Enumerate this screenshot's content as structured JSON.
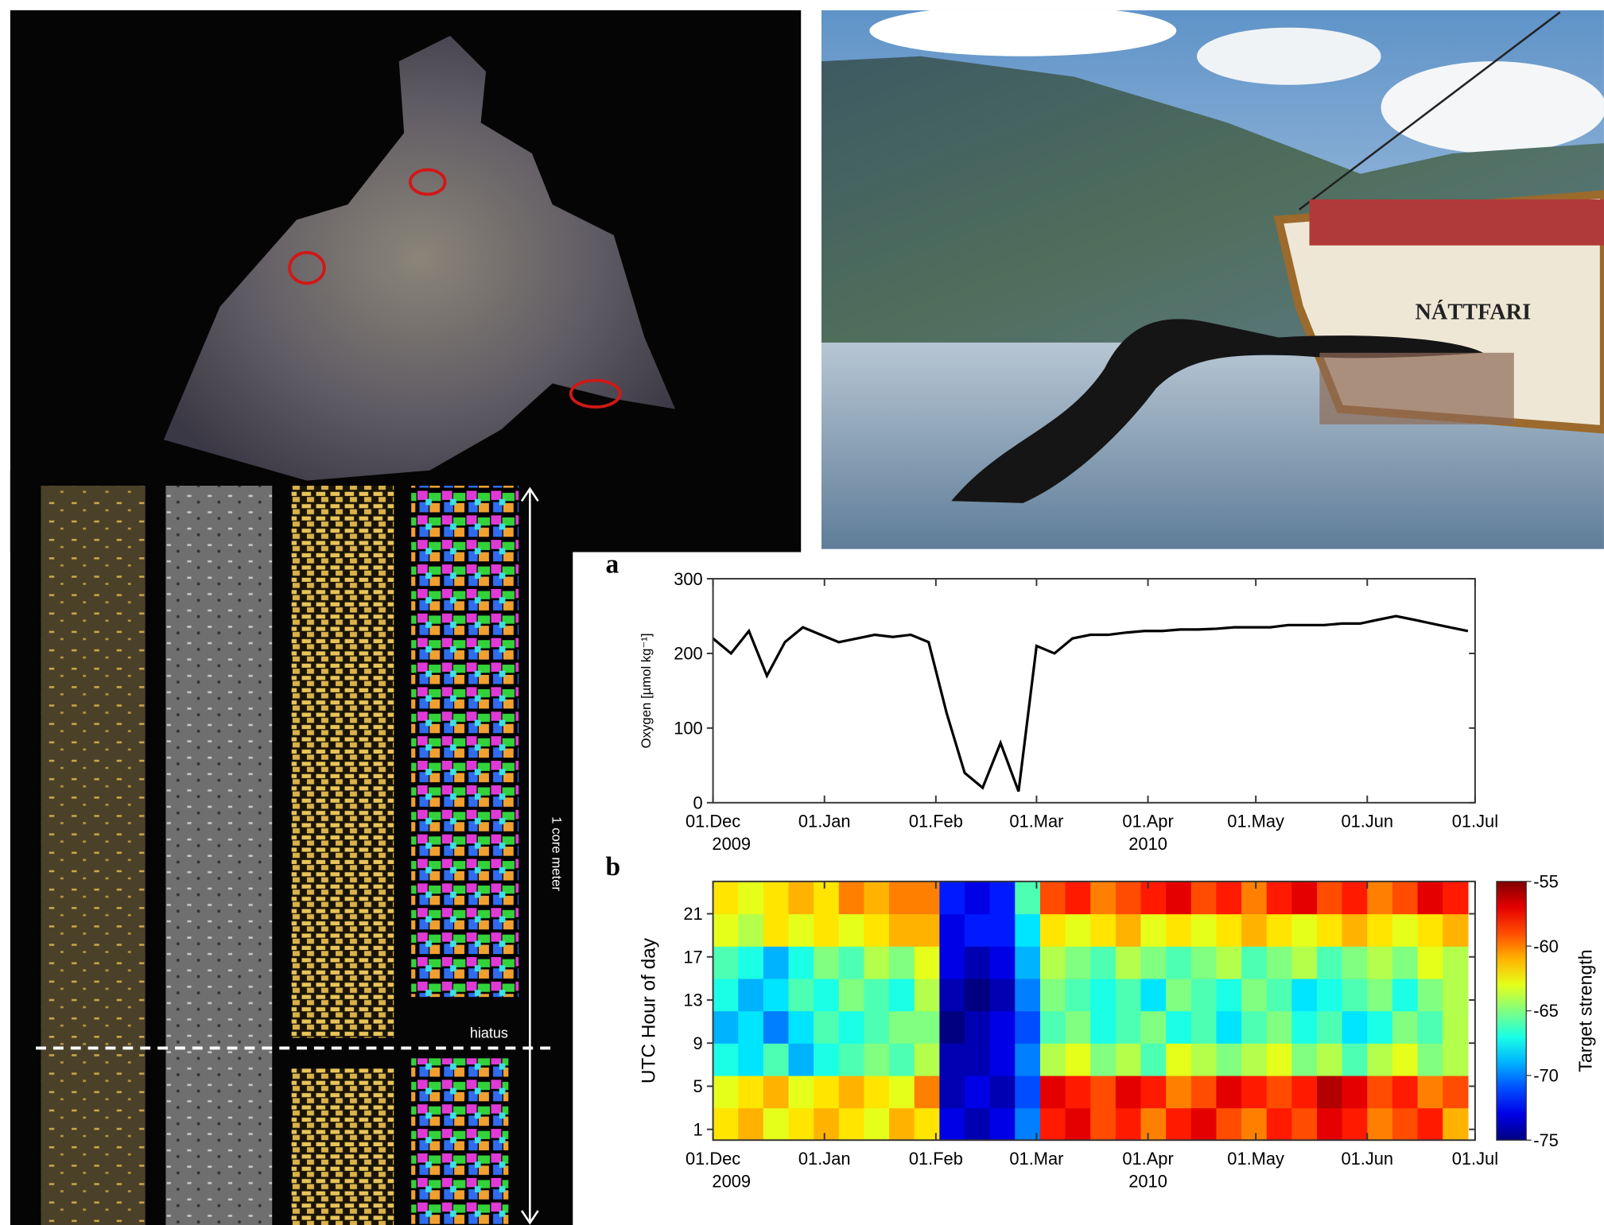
{
  "photos": {
    "boat_name": "NÁTTFARI"
  },
  "core": {
    "scale_label": "1 core meter",
    "hiatus_label": "hiatus"
  },
  "chart_data": [
    {
      "type": "line",
      "panel_label": "a",
      "y_label": "Oxygen [µmol kg⁻¹]",
      "color": "#000000",
      "x": [
        "2009-12-01",
        "2009-12-06",
        "2009-12-11",
        "2009-12-16",
        "2009-12-21",
        "2009-12-26",
        "2009-12-31",
        "2010-01-05",
        "2010-01-10",
        "2010-01-15",
        "2010-01-20",
        "2010-01-25",
        "2010-01-30",
        "2010-02-04",
        "2010-02-09",
        "2010-02-14",
        "2010-02-19",
        "2010-02-24",
        "2010-03-01",
        "2010-03-06",
        "2010-03-11",
        "2010-03-16",
        "2010-03-21",
        "2010-03-26",
        "2010-03-31",
        "2010-04-05",
        "2010-04-10",
        "2010-04-15",
        "2010-04-20",
        "2010-04-25",
        "2010-04-30",
        "2010-05-05",
        "2010-05-10",
        "2010-05-15",
        "2010-05-20",
        "2010-05-25",
        "2010-05-30",
        "2010-06-04",
        "2010-06-09",
        "2010-06-14",
        "2010-06-19",
        "2010-06-24",
        "2010-06-29"
      ],
      "values": [
        220,
        200,
        230,
        170,
        215,
        235,
        225,
        215,
        220,
        225,
        222,
        225,
        215,
        120,
        40,
        20,
        80,
        15,
        210,
        200,
        220,
        225,
        225,
        228,
        230,
        230,
        232,
        232,
        233,
        235,
        235,
        235,
        238,
        238,
        238,
        240,
        240,
        245,
        250,
        245,
        240,
        235,
        230
      ],
      "xlim": [
        "2009-12-01",
        "2010-07-01"
      ],
      "xticks": [
        {
          "value": "2009-12-01",
          "label": "01.Dec"
        },
        {
          "value": "2010-01-01",
          "label": "01.Jan"
        },
        {
          "value": "2010-02-01",
          "label": "01.Feb"
        },
        {
          "value": "2010-03-01",
          "label": "01.Mar"
        },
        {
          "value": "2010-04-01",
          "label": "01.Apr"
        },
        {
          "value": "2010-05-01",
          "label": "01.May"
        },
        {
          "value": "2010-06-01",
          "label": "01.Jun"
        },
        {
          "value": "2010-07-01",
          "label": "01.Jul"
        }
      ],
      "year_labels": [
        {
          "value": "2009-12-01",
          "label": "2009"
        },
        {
          "value": "2010-04-01",
          "label": "2010"
        }
      ],
      "ylim": [
        0,
        300
      ],
      "yticks": [
        0,
        100,
        200,
        300
      ]
    },
    {
      "type": "heatmap",
      "panel_label": "b",
      "y_label": "UTC Hour of day",
      "colormap": "jet",
      "x": [
        "2009-12-01",
        "2009-12-08",
        "2009-12-15",
        "2009-12-22",
        "2009-12-29",
        "2010-01-05",
        "2010-01-12",
        "2010-01-19",
        "2010-01-26",
        "2010-02-02",
        "2010-02-09",
        "2010-02-16",
        "2010-02-23",
        "2010-03-02",
        "2010-03-09",
        "2010-03-16",
        "2010-03-23",
        "2010-03-30",
        "2010-04-06",
        "2010-04-13",
        "2010-04-20",
        "2010-04-27",
        "2010-05-04",
        "2010-05-11",
        "2010-05-18",
        "2010-05-25",
        "2010-06-01",
        "2010-06-08",
        "2010-06-15",
        "2010-06-22"
      ],
      "ybins": [
        0,
        3,
        6,
        9,
        12,
        15,
        18,
        21,
        24
      ],
      "values": [
        [
          -62,
          -61,
          -63,
          -62,
          -61,
          -62,
          -63,
          -61,
          -62,
          -73,
          -74,
          -73,
          -70,
          -58,
          -57,
          -59,
          -58,
          -60,
          -58,
          -57,
          -59,
          -60,
          -58,
          -59,
          -57,
          -58,
          -60,
          -59,
          -58,
          -61
        ],
        [
          -63,
          -62,
          -61,
          -63,
          -62,
          -61,
          -62,
          -63,
          -60,
          -74,
          -73,
          -74,
          -71,
          -57,
          -58,
          -59,
          -57,
          -58,
          -60,
          -59,
          -57,
          -58,
          -59,
          -58,
          -56,
          -57,
          -59,
          -58,
          -60,
          -59
        ],
        [
          -67,
          -68,
          -66,
          -69,
          -67,
          -66,
          -65,
          -66,
          -64,
          -74,
          -74,
          -73,
          -70,
          -64,
          -63,
          -65,
          -64,
          -66,
          -63,
          -64,
          -65,
          -64,
          -63,
          -65,
          -64,
          -66,
          -64,
          -63,
          -65,
          -64
        ],
        [
          -69,
          -68,
          -70,
          -68,
          -66,
          -67,
          -66,
          -65,
          -65,
          -75,
          -74,
          -73,
          -71,
          -66,
          -65,
          -67,
          -66,
          -65,
          -67,
          -66,
          -68,
          -66,
          -65,
          -67,
          -66,
          -68,
          -67,
          -65,
          -66,
          -64
        ],
        [
          -67,
          -69,
          -68,
          -66,
          -67,
          -65,
          -66,
          -67,
          -64,
          -74,
          -75,
          -74,
          -70,
          -65,
          -66,
          -67,
          -66,
          -68,
          -65,
          -66,
          -67,
          -65,
          -66,
          -68,
          -67,
          -66,
          -65,
          -67,
          -65,
          -64
        ],
        [
          -66,
          -67,
          -69,
          -67,
          -65,
          -66,
          -64,
          -65,
          -63,
          -73,
          -74,
          -73,
          -69,
          -64,
          -65,
          -66,
          -64,
          -65,
          -66,
          -65,
          -64,
          -66,
          -65,
          -64,
          -66,
          -65,
          -64,
          -65,
          -63,
          -64
        ],
        [
          -63,
          -64,
          -62,
          -63,
          -62,
          -63,
          -62,
          -61,
          -61,
          -73,
          -72,
          -72,
          -68,
          -62,
          -63,
          -62,
          -61,
          -63,
          -62,
          -63,
          -62,
          -61,
          -62,
          -63,
          -62,
          -61,
          -62,
          -63,
          -62,
          -61
        ],
        [
          -62,
          -63,
          -62,
          -61,
          -62,
          -60,
          -61,
          -60,
          -60,
          -72,
          -73,
          -72,
          -66,
          -59,
          -58,
          -60,
          -59,
          -58,
          -57,
          -59,
          -58,
          -60,
          -58,
          -57,
          -59,
          -58,
          -60,
          -59,
          -57,
          -58
        ]
      ],
      "xlim": [
        "2009-12-01",
        "2010-07-01"
      ],
      "xticks": [
        {
          "value": "2009-12-01",
          "label": "01.Dec"
        },
        {
          "value": "2010-01-01",
          "label": "01.Jan"
        },
        {
          "value": "2010-02-01",
          "label": "01.Feb"
        },
        {
          "value": "2010-03-01",
          "label": "01.Mar"
        },
        {
          "value": "2010-04-01",
          "label": "01.Apr"
        },
        {
          "value": "2010-05-01",
          "label": "01.May"
        },
        {
          "value": "2010-06-01",
          "label": "01.Jun"
        },
        {
          "value": "2010-07-01",
          "label": "01.Jul"
        }
      ],
      "year_labels": [
        {
          "value": "2009-12-01",
          "label": "2009"
        },
        {
          "value": "2010-04-01",
          "label": "2010"
        }
      ],
      "ylim": [
        0,
        24
      ],
      "yticks": [
        1,
        5,
        9,
        13,
        17,
        21
      ],
      "clim": [
        -75,
        -55
      ],
      "colorbar_ticks": [
        -75,
        -70,
        -65,
        -60,
        -55
      ],
      "colorbar_label": "Target strength"
    }
  ]
}
